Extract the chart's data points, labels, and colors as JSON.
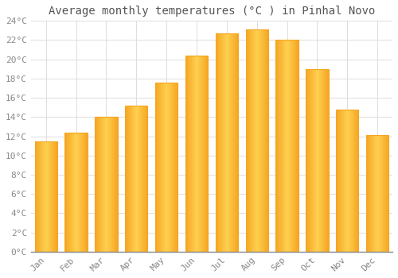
{
  "title": "Average monthly temperatures (°C ) in Pinhal Novo",
  "months": [
    "Jan",
    "Feb",
    "Mar",
    "Apr",
    "May",
    "Jun",
    "Jul",
    "Aug",
    "Sep",
    "Oct",
    "Nov",
    "Dec"
  ],
  "values": [
    11.5,
    12.4,
    14.0,
    15.2,
    17.6,
    20.4,
    22.7,
    23.1,
    22.0,
    19.0,
    14.8,
    12.1
  ],
  "bar_color_center": "#FFD050",
  "bar_color_edge": "#F5A623",
  "background_color": "#FFFFFF",
  "grid_color": "#DDDDDD",
  "tick_label_color": "#888888",
  "title_color": "#555555",
  "ylim": [
    0,
    24
  ],
  "yticks": [
    0,
    2,
    4,
    6,
    8,
    10,
    12,
    14,
    16,
    18,
    20,
    22,
    24
  ],
  "title_fontsize": 10,
  "tick_fontsize": 8,
  "font_family": "monospace"
}
